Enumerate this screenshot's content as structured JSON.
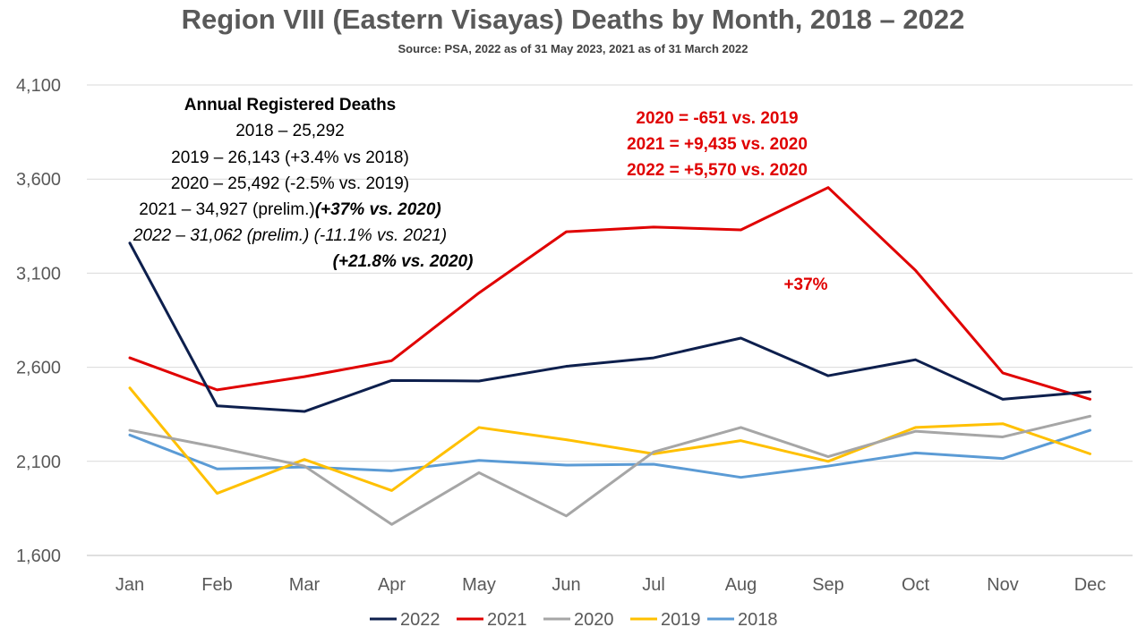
{
  "title": "Region VIII (Eastern Visayas) Deaths by Month, 2018 – 2022",
  "subtitle": "Source: PSA, 2022 as of 31 May 2023, 2021 as of 31 March 2022",
  "annotations": {
    "annual_title": "Annual Registered Deaths",
    "l2018": "2018 – 25,292",
    "l2019": "2019 – 26,143 (+3.4% vs 2018)",
    "l2020": "2020 – 25,492 (-2.5% vs. 2019)",
    "l2021_a": "2021 – 34,927 (prelim.)",
    "l2021_b": "(+37% vs. 2020)",
    "l2022_a": "2022 – 31,062 (prelim.) (-11.1% vs. 2021)",
    "l2022_b": "(+21.8% vs. 2020)",
    "r1": "2020 = -651 vs. 2019",
    "r2": "2021 = +9,435 vs. 2020",
    "r3": "2022 = +5,570 vs. 2020",
    "pct": "+37%"
  },
  "chart_data": {
    "type": "line",
    "title": "Region VIII (Eastern Visayas) Deaths by Month, 2018 – 2022",
    "xlabel": "",
    "ylabel": "",
    "ylim": [
      1600,
      4100
    ],
    "yticks": [
      1600,
      2100,
      2600,
      3100,
      3600,
      4100
    ],
    "ytick_labels": [
      "1,600",
      "2,100",
      "2,600",
      "3,100",
      "3,600",
      "4,100"
    ],
    "grid": "horizontal",
    "legend_position": "bottom",
    "categories": [
      "Jan",
      "Feb",
      "Mar",
      "Apr",
      "May",
      "Jun",
      "Jul",
      "Aug",
      "Sep",
      "Oct",
      "Nov",
      "Dec"
    ],
    "series": [
      {
        "name": "2022",
        "color": "#0d1f4d",
        "values": [
          3260,
          2395,
          2365,
          2530,
          2527,
          2605,
          2650,
          2755,
          2555,
          2640,
          2430,
          2470
        ]
      },
      {
        "name": "2021",
        "color": "#e00000",
        "values": [
          2650,
          2480,
          2550,
          2635,
          2995,
          3320,
          3345,
          3330,
          3555,
          3115,
          2570,
          2430
        ]
      },
      {
        "name": "2020",
        "color": "#a6a6a6",
        "values": [
          2265,
          2175,
          2075,
          1765,
          2040,
          1810,
          2150,
          2280,
          2125,
          2260,
          2230,
          2340
        ]
      },
      {
        "name": "2019",
        "color": "#ffc000",
        "values": [
          2490,
          1930,
          2110,
          1945,
          2280,
          2215,
          2140,
          2210,
          2100,
          2280,
          2300,
          2140
        ]
      },
      {
        "name": "2018",
        "color": "#5b9bd5",
        "values": [
          2240,
          2060,
          2070,
          2050,
          2105,
          2080,
          2085,
          2015,
          2075,
          2145,
          2115,
          2265
        ]
      }
    ]
  }
}
